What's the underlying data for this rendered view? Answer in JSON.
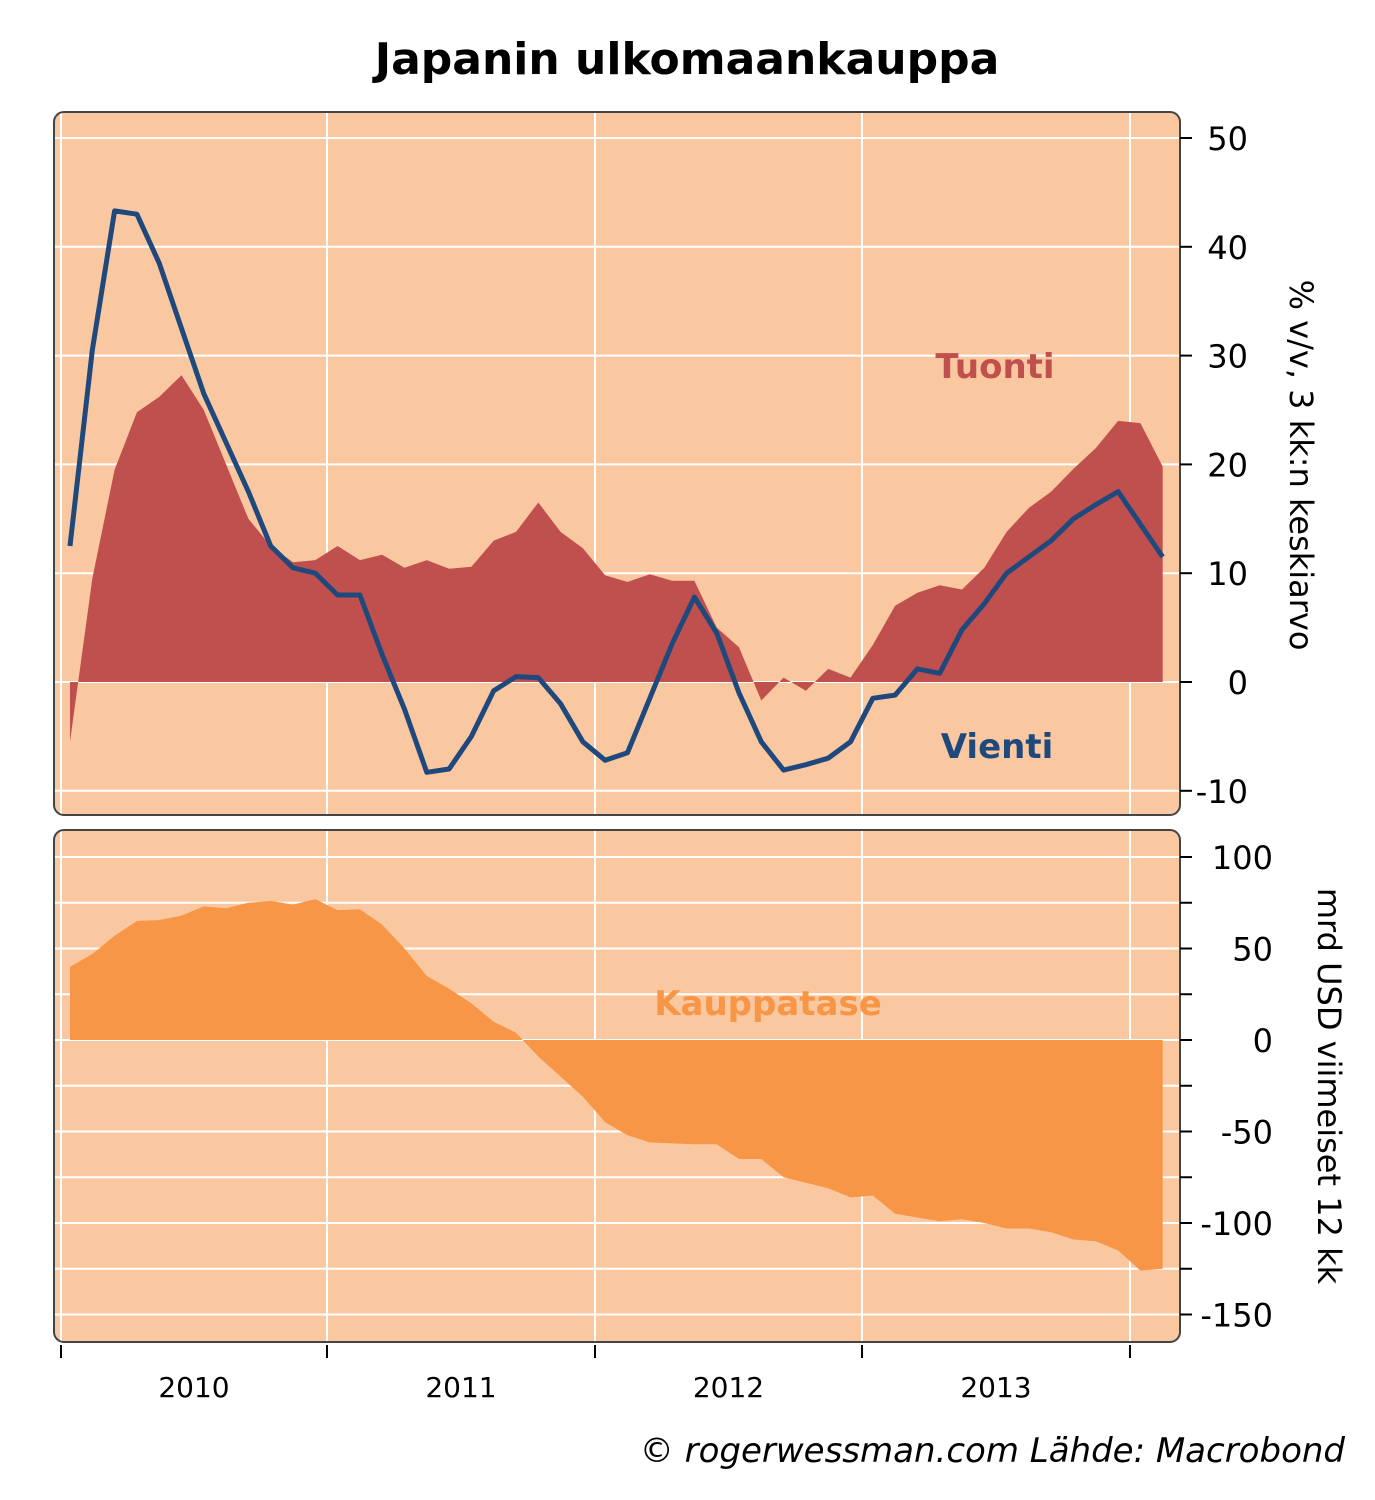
{
  "title": "Japanin ulkomaankauppa",
  "source": "© rogerwessman.com Lähde: Macrobond",
  "colors": {
    "panel_bg": "#FAC8A0",
    "tuonti": "#C0504D",
    "vienti": "#1F497D",
    "kauppatase": "#F79646",
    "grid": "#FFFFFF",
    "border": "#444444"
  },
  "chart_data": [
    {
      "type": "area",
      "title": "Japanin ulkomaankauppa",
      "ylabel": "% v/v, 3 kk:n keskiarvo",
      "ylim": [
        -12.2,
        52.4
      ],
      "yticks": [
        "50",
        "40",
        "30",
        "20",
        "10",
        "0",
        "-10"
      ],
      "ytick_values": [
        50,
        40,
        30,
        20,
        10,
        0,
        -10
      ],
      "x_start": "2010-01",
      "x_step": "month",
      "grid": true,
      "series": [
        {
          "name": "Tuonti",
          "kind": "area",
          "values": [
            -5.5,
            9.5,
            19.5,
            24.8,
            26.2,
            28.2,
            25,
            20,
            15,
            12.5,
            11,
            11.2,
            12.5,
            11.2,
            11.7,
            10.5,
            11.2,
            10.4,
            10.6,
            13,
            13.8,
            16.5,
            13.8,
            12.3,
            9.8,
            9.2,
            9.9,
            9.3,
            9.3,
            5,
            3.2,
            -1.7,
            0.4,
            -0.8,
            1.2,
            0.4,
            3.4,
            7,
            8.2,
            8.9,
            8.5,
            10.5,
            13.8,
            16,
            17.5,
            19.6,
            21.5,
            24,
            23.8,
            19.8
          ]
        },
        {
          "name": "Vienti",
          "kind": "line",
          "values": [
            12.5,
            30.5,
            43.3,
            43,
            38.5,
            32.5,
            26.5,
            22,
            17.5,
            12.5,
            10.5,
            10,
            8,
            8,
            2.5,
            -2.5,
            -8.3,
            -8,
            -5,
            -0.8,
            0.5,
            0.4,
            -2,
            -5.5,
            -7.2,
            -6.5,
            -1.5,
            3.5,
            7.8,
            4.5,
            -1,
            -5.5,
            -8.1,
            -7.6,
            -7,
            -5.5,
            -1.5,
            -1.2,
            1.2,
            0.8,
            4.8,
            7.2,
            10,
            11.5,
            13,
            15,
            16.3,
            17.5,
            14.5,
            11.5
          ]
        }
      ]
    },
    {
      "type": "area",
      "ylabel": "mrd USD viimeiset 12 kk",
      "ylim": [
        -165,
        115
      ],
      "yticks": [
        "100",
        "50",
        "0",
        "-50",
        "-100",
        "-150"
      ],
      "ytick_values": [
        100,
        50,
        0,
        -50,
        -100,
        -150
      ],
      "x_start": "2010-01",
      "x_step": "month",
      "grid": true,
      "series": [
        {
          "name": "Kauppatase",
          "kind": "area",
          "values": [
            40,
            47,
            57,
            65,
            65.5,
            68,
            73,
            72,
            75,
            76,
            74,
            77,
            71,
            71.5,
            63,
            50,
            35,
            28,
            20,
            10,
            4,
            -9,
            -20,
            -31,
            -45,
            -52,
            -56,
            -56.5,
            -57,
            -57,
            -65,
            -65,
            -75,
            -78,
            -81,
            -86,
            -85,
            -95,
            -97,
            -99,
            -98,
            -100,
            -103,
            -103,
            -105,
            -109,
            -110,
            -115,
            -126,
            -125
          ]
        }
      ]
    }
  ],
  "xaxis": {
    "labels": [
      "2010",
      "2011",
      "2012",
      "2013"
    ]
  }
}
